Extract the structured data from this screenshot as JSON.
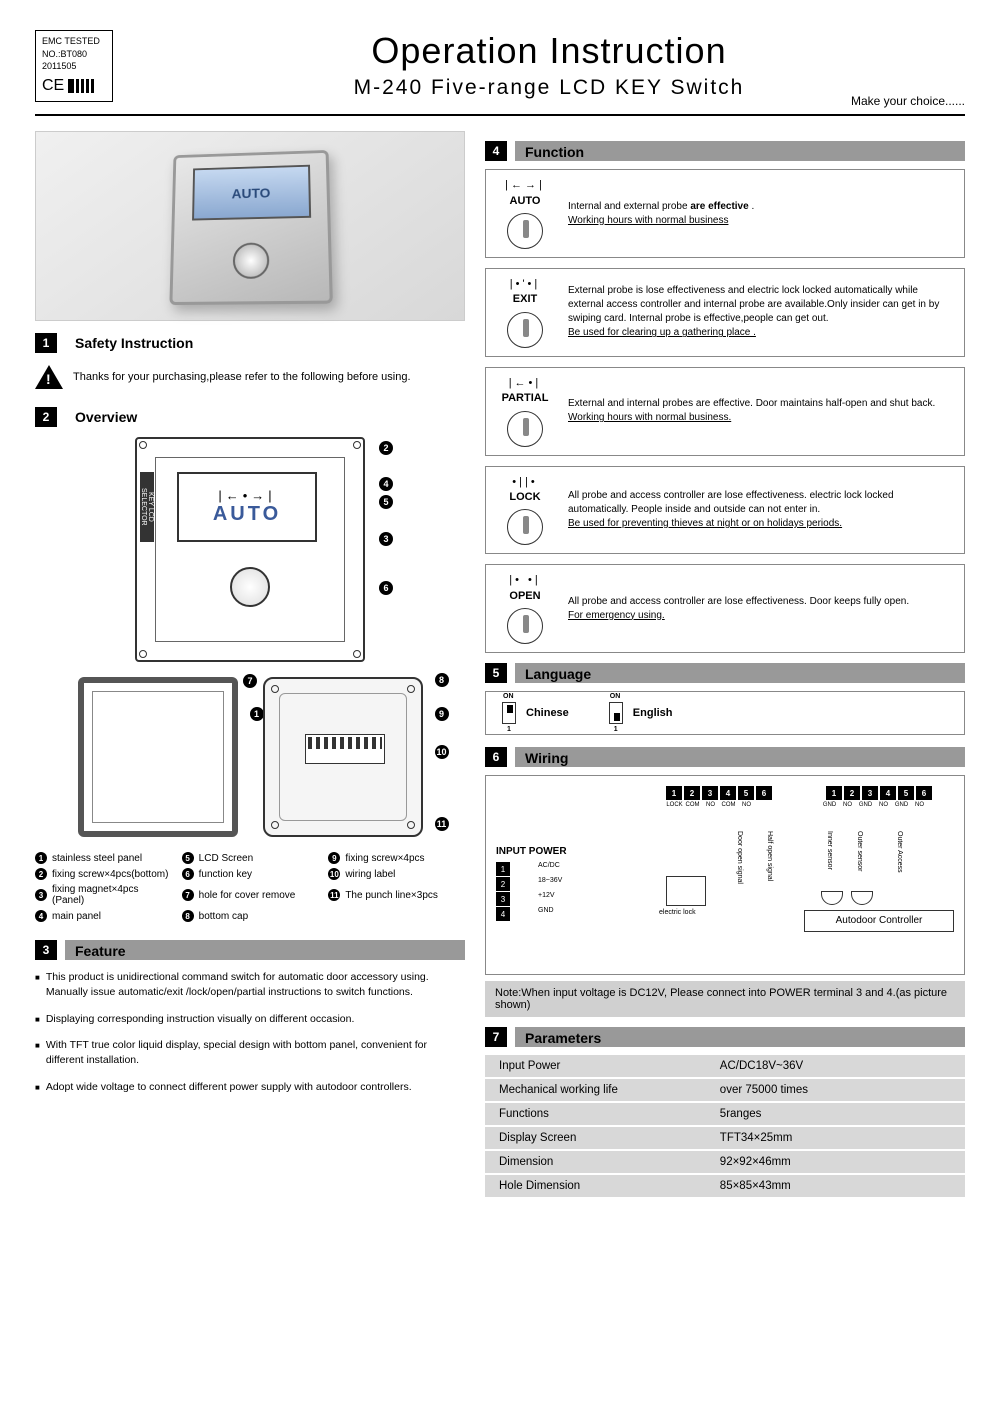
{
  "header": {
    "emc_line1": "EMC TESTED",
    "emc_line2": "NO.:BT080",
    "emc_line3": "2011505",
    "ce": "CE",
    "title": "Operation Instruction",
    "subtitle": "M-240  Five-range  LCD  KEY Switch",
    "tagline": "Make  your  choice......"
  },
  "sections": {
    "s1": {
      "n": "1",
      "t": "Safety Instruction"
    },
    "s2": {
      "n": "2",
      "t": "Overview"
    },
    "s3": {
      "n": "3",
      "t": "Feature"
    },
    "s4": {
      "n": "4",
      "t": "Function"
    },
    "s5": {
      "n": "5",
      "t": "Language"
    },
    "s6": {
      "n": "6",
      "t": "Wiring"
    },
    "s7": {
      "n": "7",
      "t": "Parameters"
    }
  },
  "safety_text": "Thanks for your purchasing,please refer to the following before using.",
  "overview": {
    "lcd_symbol": "|←•→|",
    "lcd_text": "AUTO",
    "sidebar": "KEY LCD SELECTOR",
    "legend": [
      {
        "n": "1",
        "t": "stainless steel panel"
      },
      {
        "n": "2",
        "t": "fixing screw×4pcs(bottom)"
      },
      {
        "n": "3",
        "t": "fixing magnet×4pcs (Panel)"
      },
      {
        "n": "4",
        "t": "main panel"
      },
      {
        "n": "5",
        "t": "LCD Screen"
      },
      {
        "n": "6",
        "t": "function key"
      },
      {
        "n": "7",
        "t": "hole for cover remove"
      },
      {
        "n": "8",
        "t": "bottom cap"
      },
      {
        "n": "9",
        "t": "fixing screw×4pcs"
      },
      {
        "n": "10",
        "t": "wiring label"
      },
      {
        "n": "11",
        "t": "The punch line×3pcs"
      }
    ]
  },
  "features": [
    "This product is unidirectional command switch for automatic door accessory using. Manually issue automatic/exit /lock/open/partial instructions to switch functions.",
    "Displaying corresponding instruction visually on different occasion.",
    "With TFT true color liquid display, special design with bottom panel, convenient for different installation.",
    "Adopt wide voltage to connect different power supply with autodoor controllers."
  ],
  "functions": [
    {
      "sym": "|←→|",
      "label": "AUTO",
      "text": "Internal and external probe <b>are effective</b> .",
      "u": "Working hours with normal business"
    },
    {
      "sym": "|•'•|",
      "label": "EXIT",
      "text": "External probe is lose effectiveness and electric lock locked automatically while external access controller and internal probe are available.Only insider can get in by swiping card. Internal probe is effective,people can get out.",
      "u": "Be used for clearing up a gathering place ."
    },
    {
      "sym": "|←•|",
      "label": "PARTIAL",
      "text": "External and internal probes are effective. Door maintains half-open and shut back.",
      "u": "Working hours with normal business."
    },
    {
      "sym": "•||•",
      "label": "LOCK",
      "text": "All probe and access controller are lose effectiveness. electric lock locked automatically. People inside and outside can  not enter in.",
      "u": "Be used  for preventing thieves  at night  or on holidays periods."
    },
    {
      "sym": "|• •|",
      "label": "OPEN",
      "text": "All probe and access controller  are lose effectiveness. Door keeps fully open.",
      "u": "For emergency using."
    }
  ],
  "language": {
    "a": "Chinese",
    "b": "English"
  },
  "wiring": {
    "terms": [
      "1",
      "2",
      "3",
      "4",
      "5",
      "6"
    ],
    "labelsL": [
      "LOCK",
      "COM",
      "NO",
      "COM",
      "NO",
      ""
    ],
    "labelsR": [
      "GND",
      "NO",
      "GND",
      "NO",
      "GND",
      "NO"
    ],
    "input_power": "INPUT POWER",
    "power": [
      {
        "n": "1",
        "t": "AC/DC"
      },
      {
        "n": "2",
        "t": "18~36V"
      },
      {
        "n": "3",
        "t": "+12V"
      },
      {
        "n": "4",
        "t": "GND"
      }
    ],
    "sigs": [
      "Door open signal",
      "Half open signal",
      "Inner sensor",
      "Outer sensor",
      "Outer Access"
    ],
    "controller": "Autodoor Controller",
    "note": "Note:When input voltage is DC12V, Please connect into POWER terminal 3 and 4.(as picture shown)"
  },
  "parameters": [
    {
      "k": "Input Power",
      "v": "AC/DC18V~36V"
    },
    {
      "k": "Mechanical working life",
      "v": "over 75000  times"
    },
    {
      "k": "Functions",
      "v": "5ranges"
    },
    {
      "k": "Display Screen",
      "v": "TFT34×25mm"
    },
    {
      "k": "Dimension",
      "v": "92×92×46mm"
    },
    {
      "k": "Hole Dimension",
      "v": "85×85×43mm"
    }
  ],
  "colors": {
    "section_bar": "#999999",
    "param_bg": "#d8d8d8",
    "note_bg": "#d0d0d0",
    "lcd_text": "#3a5a9a"
  }
}
